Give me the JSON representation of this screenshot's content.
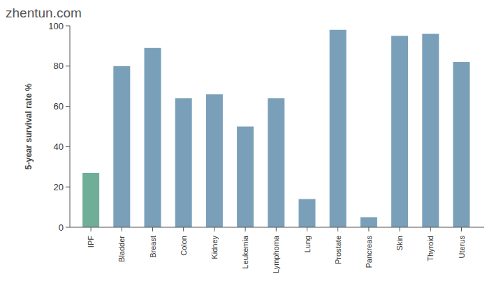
{
  "watermark": "zhentun.com",
  "chart_data": {
    "type": "bar",
    "y_label": "5-year survival rate %",
    "categories": [
      "IPF",
      "Bladder",
      "Breast",
      "Colon",
      "Kidney",
      "Leukemia",
      "Lymphoma",
      "Lung",
      "Prostate",
      "Pancreas",
      "Skin",
      "Thyroid",
      "Uterus"
    ],
    "values": [
      27,
      80,
      89,
      64,
      66,
      50,
      64,
      14,
      98,
      5,
      95,
      96,
      82
    ],
    "colors": [
      "#6fae97",
      "#7aa0b9",
      "#7aa0b9",
      "#7aa0b9",
      "#7aa0b9",
      "#7aa0b9",
      "#7aa0b9",
      "#7aa0b9",
      "#7aa0b9",
      "#7aa0b9",
      "#7aa0b9",
      "#7aa0b9",
      "#7aa0b9"
    ],
    "ylim": [
      0,
      100
    ],
    "yticks": [
      0,
      20,
      40,
      60,
      80,
      100
    ],
    "grid": false
  }
}
